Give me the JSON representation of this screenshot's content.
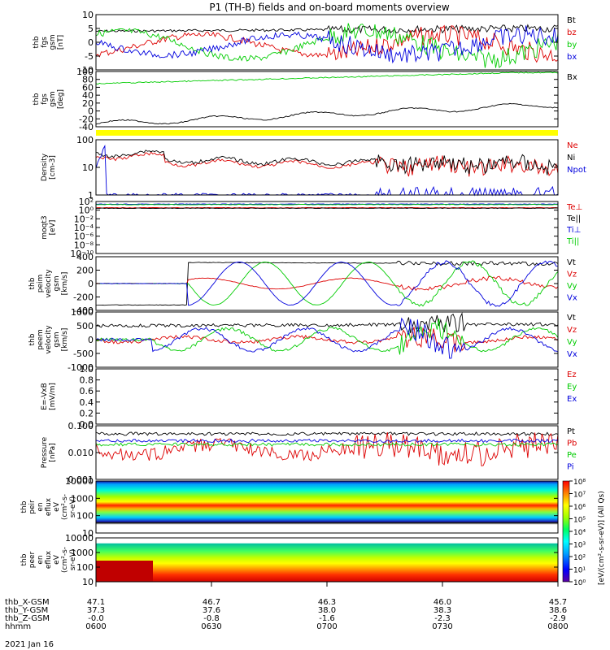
{
  "title": "P1 (TH-B) fields and on-board moments overview",
  "date_label": "2021 Jan 16",
  "colorbar_label": "[eV/(cm²-s-sr-eV)] (All Qs)",
  "colorbar_ticks": [
    "10⁸",
    "10⁷",
    "10⁶",
    "10⁵",
    "10⁴",
    "10³",
    "10²",
    "10¹",
    "10⁰"
  ],
  "colors": {
    "black": "#000000",
    "red": "#dd0000",
    "green": "#00cc00",
    "blue": "#0000dd",
    "yellow": "#ffff00"
  },
  "ephemeris": {
    "row_labels": [
      "thb_X-GSM",
      "thb_Y-GSM",
      "thb_Z-GSM",
      "hhmm"
    ],
    "columns": [
      [
        "47.1",
        "37.3",
        "-0.0",
        "0600"
      ],
      [
        "46.7",
        "37.6",
        "-0.8",
        "0630"
      ],
      [
        "46.3",
        "38.0",
        "-1.6",
        "0700"
      ],
      [
        "46.0",
        "38.3",
        "-2.3",
        "0730"
      ],
      [
        "45.7",
        "38.6",
        "-2.9",
        "0800"
      ]
    ]
  },
  "chart_data": [
    {
      "type": "line",
      "ylabel": [
        "thb",
        "fgs",
        "gsm",
        "[nT]"
      ],
      "ylim": [
        -10,
        10
      ],
      "yticks": [
        "10",
        "5",
        "0",
        "-5",
        "-10"
      ],
      "series": [
        {
          "name": "Bt",
          "color": "black"
        },
        {
          "name": "bz",
          "color": "red"
        },
        {
          "name": "by",
          "color": "green"
        },
        {
          "name": "bx",
          "color": "blue"
        }
      ]
    },
    {
      "type": "line",
      "ylabel": [
        "thb",
        "fgs",
        "gsm",
        "[deg]"
      ],
      "ylim": [
        -50,
        110
      ],
      "yticks": [
        "100",
        "80",
        "60",
        "40",
        "20",
        "0",
        "-20",
        "-40"
      ],
      "series": [
        {
          "name": "Bx",
          "color": "black"
        },
        {
          "name": "",
          "color": "green"
        }
      ]
    },
    {
      "type": "line",
      "ylabel": [
        "Density",
        "[cm-3]"
      ],
      "scale": "log",
      "yticks": [
        "100",
        "10",
        "1"
      ],
      "series": [
        {
          "name": "Ne",
          "color": "red"
        },
        {
          "name": "Ni",
          "color": "black"
        },
        {
          "name": "Npot",
          "color": "blue"
        }
      ]
    },
    {
      "type": "line",
      "ylabel": [
        "moqt3",
        "[eV]"
      ],
      "scale": "log",
      "yticks": [
        "10²",
        "10⁰",
        "10⁻²",
        "10⁻⁴",
        "10⁻⁶",
        "10⁻⁸",
        "10⁻¹⁰"
      ],
      "series": [
        {
          "name": "Te⊥",
          "color": "red"
        },
        {
          "name": "Te||",
          "color": "black"
        },
        {
          "name": "Ti⊥",
          "color": "blue"
        },
        {
          "name": "Ti||",
          "color": "green"
        }
      ]
    },
    {
      "type": "line",
      "ylabel": [
        "thb",
        "peim",
        "velocity",
        "gsm",
        "[km/s]"
      ],
      "ylim": [
        -400,
        400
      ],
      "yticks": [
        "400",
        "200",
        "0",
        "-200",
        "-400"
      ],
      "series": [
        {
          "name": "Vt",
          "color": "black"
        },
        {
          "name": "Vz",
          "color": "red"
        },
        {
          "name": "Vy",
          "color": "green"
        },
        {
          "name": "Vx",
          "color": "blue"
        }
      ]
    },
    {
      "type": "line",
      "ylabel": [
        "thb",
        "peem",
        "velocity",
        "gsm",
        "[km/s]"
      ],
      "ylim": [
        -1000,
        1000
      ],
      "yticks": [
        "1000",
        "500",
        "0",
        "-500",
        "-1000"
      ],
      "series": [
        {
          "name": "Vt",
          "color": "black"
        },
        {
          "name": "Vz",
          "color": "red"
        },
        {
          "name": "Vy",
          "color": "green"
        },
        {
          "name": "Vx",
          "color": "blue"
        }
      ]
    },
    {
      "type": "line",
      "ylabel": [
        "E=-VxB",
        "[mV/m]"
      ],
      "ylim": [
        0,
        1
      ],
      "yticks": [
        "1.0",
        "0.8",
        "0.6",
        "0.4",
        "0.2",
        "0.0"
      ],
      "series": [
        {
          "name": "Ez",
          "color": "red"
        },
        {
          "name": "Ey",
          "color": "green"
        },
        {
          "name": "Ex",
          "color": "blue"
        }
      ]
    },
    {
      "type": "line",
      "ylabel": [
        "Pressure",
        "[nPa]"
      ],
      "scale": "log",
      "yticks": [
        "0.100",
        "0.010",
        "0.001"
      ],
      "series": [
        {
          "name": "Pt",
          "color": "black"
        },
        {
          "name": "Pb",
          "color": "red"
        },
        {
          "name": "Pe",
          "color": "green"
        },
        {
          "name": "Pi",
          "color": "blue"
        }
      ]
    },
    {
      "type": "heatmap",
      "ylabel": [
        "thb",
        "peir",
        "en",
        "eflux",
        "eV",
        "(cm²-s-",
        "sr-eV)"
      ],
      "scale": "log",
      "yticks": [
        "10000",
        "1000",
        "100",
        "10"
      ]
    },
    {
      "type": "heatmap",
      "ylabel": [
        "thb",
        "peer",
        "en",
        "eflux",
        "eV",
        "(cm²-s-",
        "sr-eV)"
      ],
      "scale": "log",
      "yticks": [
        "10000",
        "1000",
        "100",
        "10"
      ]
    }
  ]
}
